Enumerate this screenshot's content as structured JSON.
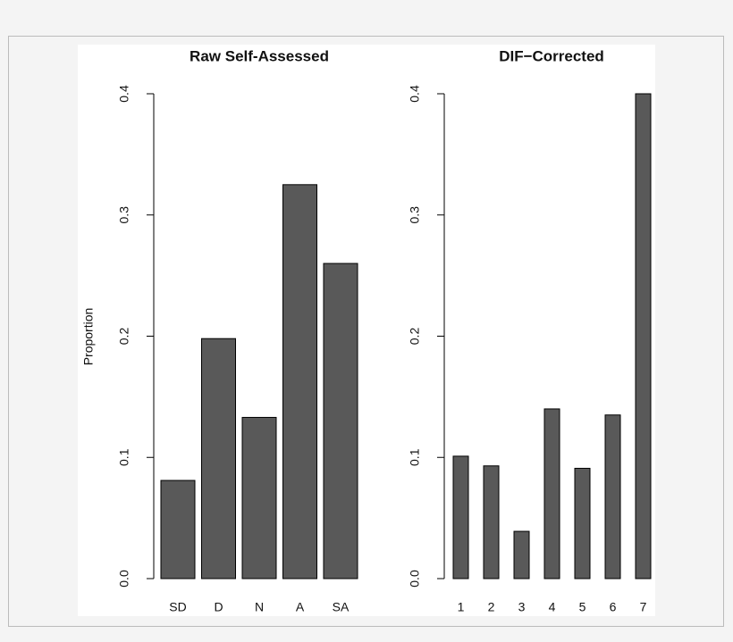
{
  "chart_data": [
    {
      "type": "bar",
      "title": "Raw Self-Assessed",
      "ylabel": "Proportion",
      "categories": [
        "SD",
        "D",
        "N",
        "A",
        "SA"
      ],
      "values": [
        0.081,
        0.198,
        0.133,
        0.325,
        0.26
      ],
      "color": "#595959",
      "ylim": [
        0,
        0.4
      ],
      "yticks": [
        {
          "value": 0,
          "label": "0.0"
        },
        0.1,
        0.2,
        0.3,
        0.4
      ]
    },
    {
      "type": "bar",
      "title": "DIF−Corrected",
      "categories": [
        "1",
        "2",
        "3",
        "4",
        "5",
        "6",
        "7"
      ],
      "values": [
        0.101,
        0.093,
        0.039,
        0.14,
        0.091,
        0.135,
        0.4
      ],
      "color": "#595959",
      "ylim": [
        0,
        0.4
      ],
      "yticks": [
        {
          "value": 0,
          "label": "0.0"
        },
        0.1,
        0.2,
        0.3,
        0.4
      ]
    }
  ]
}
